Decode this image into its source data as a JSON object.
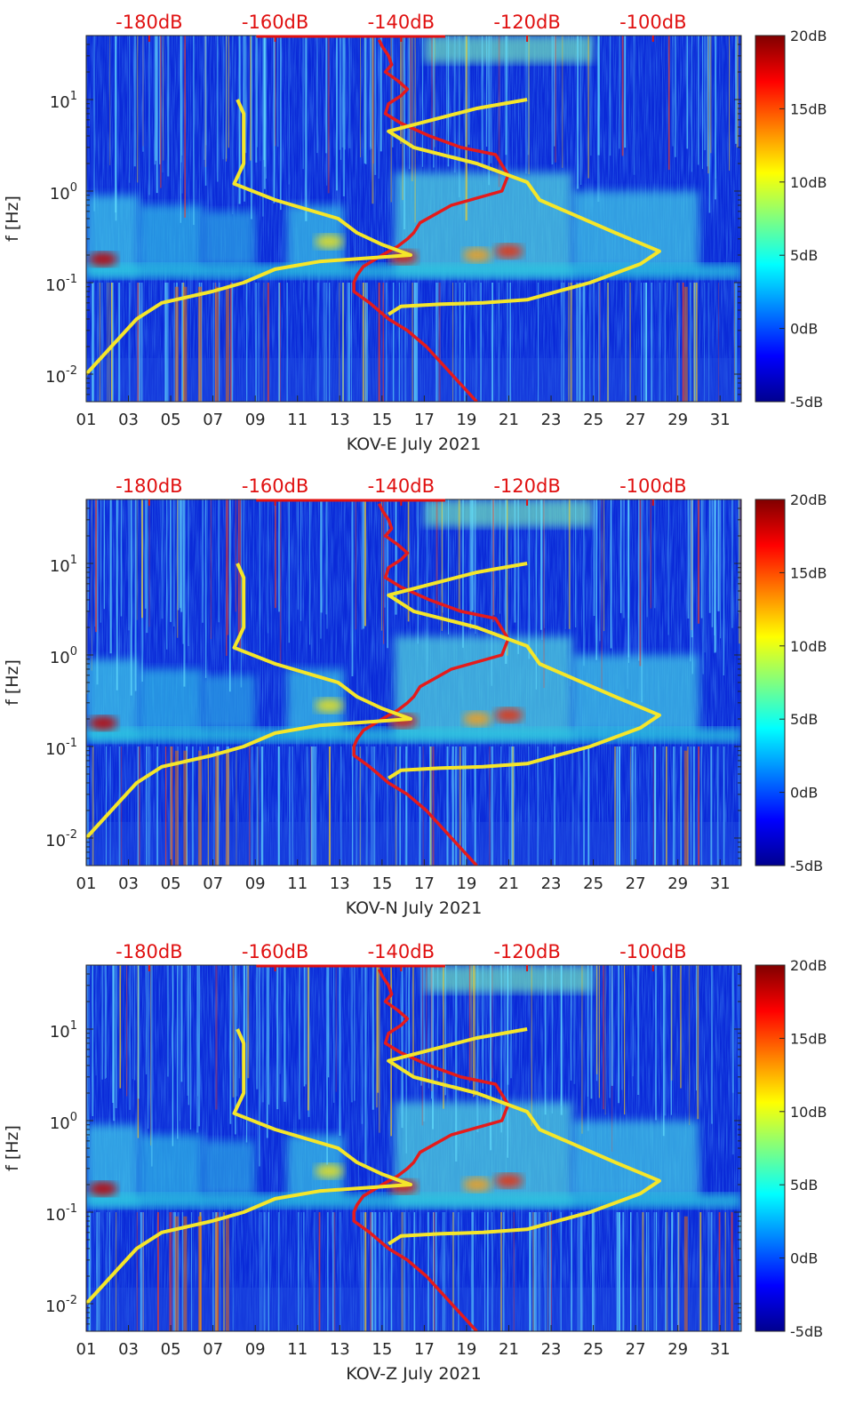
{
  "chart_data": [
    {
      "type": "heatmap",
      "xlabel": "KOV-E July 2021",
      "ylabel": "f [Hz]",
      "x_tick_labels": [
        "01",
        "03",
        "05",
        "07",
        "09",
        "11",
        "13",
        "15",
        "17",
        "19",
        "21",
        "23",
        "25",
        "27",
        "29",
        "31"
      ],
      "x_ticks": [
        1,
        3,
        5,
        7,
        9,
        11,
        13,
        15,
        17,
        19,
        21,
        23,
        25,
        27,
        29,
        31
      ],
      "xlim": [
        1,
        32
      ],
      "ylim": [
        0.005,
        50
      ],
      "yscale": "log",
      "y_tick_labels": [
        {
          "value": 0.01,
          "base": "10",
          "exp": "-2"
        },
        {
          "value": 0.1,
          "base": "10",
          "exp": "-1"
        },
        {
          "value": 1,
          "base": "10",
          "exp": "0"
        },
        {
          "value": 10,
          "base": "10",
          "exp": "1"
        }
      ],
      "top_axis": {
        "labels": [
          "-180dB",
          "-160dB",
          "-140dB",
          "-120dB",
          "-100dB"
        ],
        "ticks_dB": [
          -180,
          -160,
          -140,
          -120,
          -100
        ],
        "lim_dB": [
          -190,
          -86
        ]
      },
      "colorbar": {
        "labels": [
          "20dB",
          "15dB",
          "10dB",
          "5dB",
          "0dB",
          "-5dB"
        ],
        "values": [
          20,
          15,
          10,
          5,
          0,
          -5
        ],
        "colormap": "jet",
        "range": [
          -5,
          20
        ]
      },
      "series": [
        {
          "color": "#e51b1b",
          "dB": [
            -143.5,
            -143,
            -142,
            -141.5,
            -142.5,
            -140.5,
            -139,
            -140,
            -142,
            -142.5,
            -140,
            -135.5,
            -130.5,
            -125,
            -123,
            -124,
            -132,
            -137,
            -138,
            -139,
            -140.5,
            -143,
            -146,
            -147,
            -147.5,
            -147.5,
            -145,
            -142,
            -139,
            -136,
            -132,
            -128
          ],
          "f_Hz": [
            45,
            38,
            30,
            24,
            20,
            16,
            13,
            11,
            9,
            7,
            5.5,
            4,
            3,
            2.5,
            1.5,
            1,
            0.7,
            0.45,
            0.35,
            0.3,
            0.25,
            0.2,
            0.15,
            0.12,
            0.1,
            0.08,
            0.06,
            0.04,
            0.03,
            0.02,
            0.01,
            0.005
          ]
        },
        {
          "color": "#f5e62a",
          "dB": [
            -166,
            -165,
            -165,
            -165,
            -166.5,
            -160,
            -150,
            -147,
            -143,
            -138.5,
            -153,
            -160,
            -165,
            -170,
            -178,
            -182,
            -186,
            -190
          ],
          "f_Hz": [
            10,
            7,
            4,
            2,
            1.2,
            0.8,
            0.5,
            0.35,
            0.26,
            0.2,
            0.17,
            0.14,
            0.1,
            0.08,
            0.06,
            0.04,
            0.02,
            0.01
          ]
        },
        {
          "color": "#f5e62a",
          "dB": [
            -142,
            -140,
            -134,
            -127,
            -120,
            -110,
            -102,
            -99,
            -106,
            -118,
            -120,
            -128,
            -138,
            -142,
            -135,
            -128,
            -120
          ],
          "f_Hz": [
            0.045,
            0.055,
            0.058,
            0.06,
            0.065,
            0.1,
            0.16,
            0.22,
            0.35,
            0.8,
            1.25,
            2,
            3,
            4.5,
            6,
            8,
            10
          ]
        }
      ]
    },
    {
      "type": "heatmap",
      "xlabel": "KOV-N July 2021",
      "ylabel": "f [Hz]",
      "x_tick_labels": [
        "01",
        "03",
        "05",
        "07",
        "09",
        "11",
        "13",
        "15",
        "17",
        "19",
        "21",
        "23",
        "25",
        "27",
        "29",
        "31"
      ],
      "top_axis_labels": [
        "-180dB",
        "-160dB",
        "-140dB",
        "-120dB",
        "-100dB"
      ],
      "colorbar_labels": [
        "20dB",
        "15dB",
        "10dB",
        "5dB",
        "0dB",
        "-5dB"
      ]
    },
    {
      "type": "heatmap",
      "xlabel": "KOV-Z July 2021",
      "ylabel": "f [Hz]",
      "x_tick_labels": [
        "01",
        "03",
        "05",
        "07",
        "09",
        "11",
        "13",
        "15",
        "17",
        "19",
        "21",
        "23",
        "25",
        "27",
        "29",
        "31"
      ],
      "top_axis_labels": [
        "-180dB",
        "-160dB",
        "-140dB",
        "-120dB",
        "-100dB"
      ],
      "colorbar_labels": [
        "20dB",
        "15dB",
        "10dB",
        "5dB",
        "0dB",
        "-5dB"
      ]
    }
  ]
}
